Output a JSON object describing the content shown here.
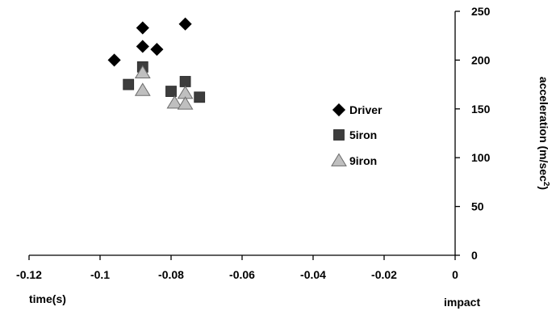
{
  "chart_data": {
    "type": "scatter",
    "title": "",
    "xlabel": "time(s)",
    "xlabel_end": "impact",
    "ylabel": "acceleration (m/sec",
    "ylabel_sup": "2",
    "ylabel_close": ")",
    "xlim": [
      -0.12,
      0
    ],
    "ylim": [
      0,
      250
    ],
    "x_ticks": [
      -0.12,
      -0.1,
      -0.08,
      -0.06,
      -0.04,
      -0.02,
      0
    ],
    "x_tick_labels": [
      "-0.12",
      "-0.1",
      "-0.08",
      "-0.06",
      "-0.04",
      "-0.02",
      "0"
    ],
    "y_ticks": [
      0,
      50,
      100,
      150,
      200,
      250
    ],
    "y_tick_labels": [
      "0",
      "50",
      "100",
      "150",
      "200",
      "250"
    ],
    "y_axis_side": "right",
    "grid": false,
    "legend_position": "right-middle",
    "series": [
      {
        "name": "Driver",
        "marker": "diamond",
        "color": "#000000",
        "points": [
          [
            -0.096,
            200
          ],
          [
            -0.088,
            233
          ],
          [
            -0.088,
            214
          ],
          [
            -0.084,
            211
          ],
          [
            -0.076,
            237
          ]
        ]
      },
      {
        "name": "5iron",
        "marker": "square",
        "color": "#3d3d3d",
        "points": [
          [
            -0.092,
            175
          ],
          [
            -0.088,
            193
          ],
          [
            -0.08,
            168
          ],
          [
            -0.076,
            178
          ],
          [
            -0.072,
            162
          ]
        ]
      },
      {
        "name": "9iron",
        "marker": "triangle",
        "color": "#bfbfbf",
        "points": [
          [
            -0.088,
            187
          ],
          [
            -0.088,
            169
          ],
          [
            -0.079,
            156
          ],
          [
            -0.076,
            166
          ],
          [
            -0.076,
            155
          ]
        ]
      }
    ]
  }
}
